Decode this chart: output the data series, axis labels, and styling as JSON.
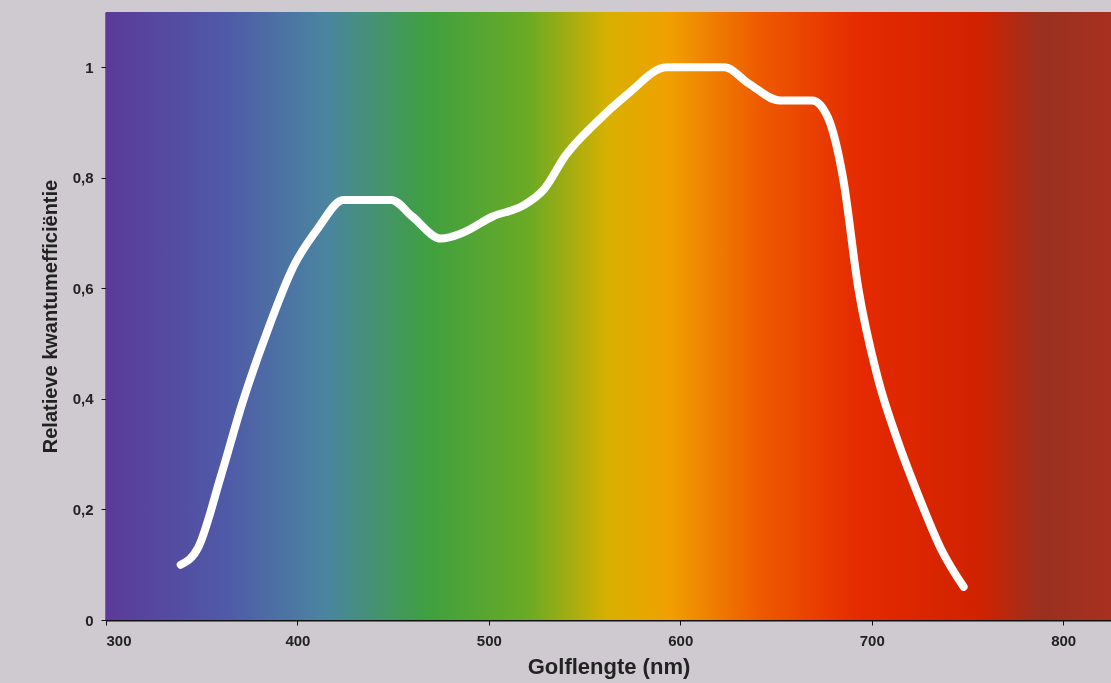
{
  "chart_data": {
    "type": "line",
    "xlabel": "Golflengte (nm)",
    "ylabel": "Relatieve kwantumefficiëntie",
    "x": [
      339,
      348,
      360,
      371,
      384,
      398,
      411,
      424,
      435,
      449,
      460,
      475,
      486,
      502,
      518,
      529,
      540,
      556,
      572,
      593,
      604,
      623,
      636,
      652,
      669,
      677,
      685,
      693,
      703,
      714,
      725,
      736,
      748
    ],
    "series": [
      {
        "color": "#ffffff",
        "values": [
          0.1,
          0.13,
          0.26,
          0.39,
          0.52,
          0.64,
          0.71,
          0.76,
          0.76,
          0.76,
          0.73,
          0.69,
          0.7,
          0.73,
          0.75,
          0.78,
          0.84,
          0.9,
          0.95,
          1.0,
          1.0,
          1.0,
          0.97,
          0.94,
          0.94,
          0.91,
          0.8,
          0.6,
          0.44,
          0.32,
          0.22,
          0.13,
          0.06
        ]
      }
    ],
    "xlim": [
      300,
      825
    ],
    "xticks": [
      300,
      400,
      500,
      600,
      700,
      800
    ],
    "ylim": [
      0,
      1.1
    ],
    "yticks": [
      0,
      {
        "value": 0.2,
        "label": "0,2"
      },
      {
        "value": 0.4,
        "label": "0,4"
      },
      {
        "value": 0.6,
        "label": "0,6"
      },
      {
        "value": 0.8,
        "label": "0,8"
      },
      1
    ],
    "line_style": "solid"
  }
}
